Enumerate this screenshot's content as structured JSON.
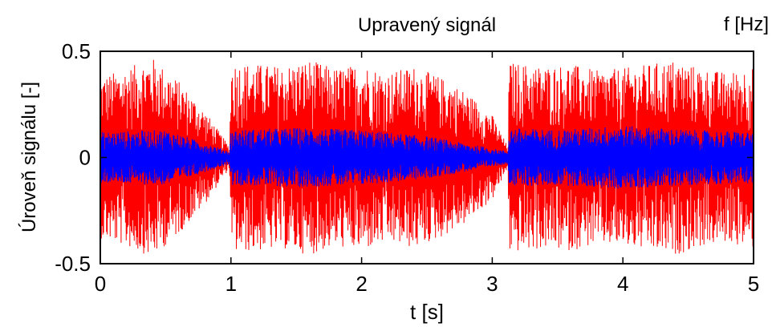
{
  "chart_data": {
    "type": "line",
    "title": "Upravený signál",
    "corner_label": "f [Hz]",
    "xlabel": "t [s]",
    "ylabel": "Úroveň signálu [-]",
    "xlim": [
      0,
      5
    ],
    "ylim": [
      -0.5,
      0.5
    ],
    "xticks": [
      0,
      1,
      2,
      3,
      4,
      5
    ],
    "xtick_labels": [
      "0",
      "1",
      "2",
      "3",
      "4",
      "5"
    ],
    "yticks": [
      -0.5,
      0,
      0.5
    ],
    "ytick_labels": [
      "-0.5",
      "0",
      "0.5"
    ],
    "grid": false,
    "legend": "none",
    "series": [
      {
        "color": "#ff0000",
        "envelope_x": [
          0,
          0.2,
          0.4,
          0.6,
          0.8,
          0.99,
          1.0,
          1.2,
          1.4,
          1.6,
          1.8,
          2.0,
          2.2,
          2.4,
          2.6,
          2.8,
          3.0,
          3.12,
          3.13,
          3.4,
          3.6,
          3.8,
          4.0,
          4.2,
          4.4,
          4.6,
          4.8,
          5.0
        ],
        "envelope_y": [
          0.38,
          0.42,
          0.47,
          0.36,
          0.22,
          0.05,
          0.45,
          0.44,
          0.43,
          0.46,
          0.42,
          0.44,
          0.4,
          0.43,
          0.38,
          0.31,
          0.2,
          0.05,
          0.45,
          0.43,
          0.44,
          0.41,
          0.42,
          0.44,
          0.46,
          0.42,
          0.4,
          0.43
        ]
      },
      {
        "color": "#0000ff",
        "envelope_x": [
          0,
          0.5,
          0.99,
          1.0,
          1.5,
          2.0,
          2.5,
          3.12,
          3.13,
          3.5,
          4.0,
          4.5,
          5.0
        ],
        "envelope_y": [
          0.12,
          0.13,
          0.03,
          0.13,
          0.14,
          0.13,
          0.1,
          0.03,
          0.14,
          0.13,
          0.15,
          0.13,
          0.12
        ]
      }
    ]
  }
}
